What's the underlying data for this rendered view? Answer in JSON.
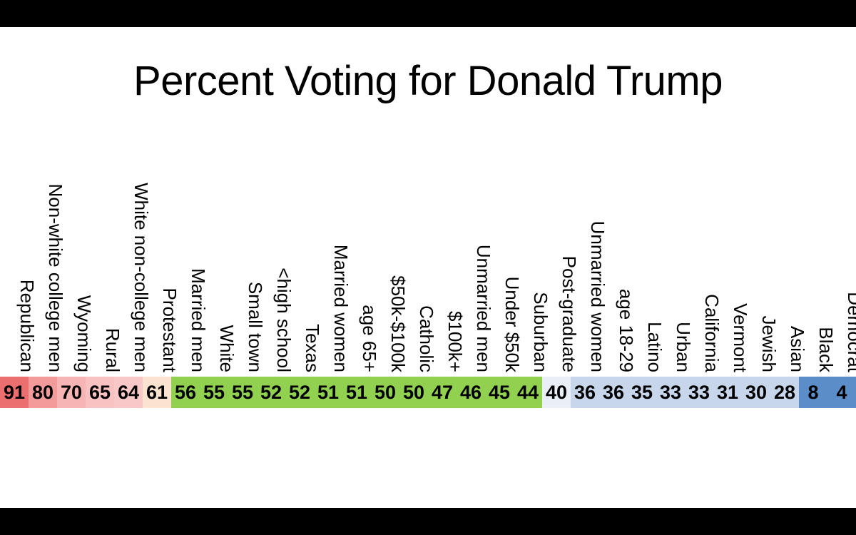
{
  "title": "Percent Voting for Donald Trump",
  "chart_data": {
    "type": "table",
    "title": "Percent Voting for Donald Trump",
    "categories": [
      "Republican",
      "Non-white college men",
      "Wyoming",
      "Rural",
      "White non-college men",
      "Protestant",
      "Married men",
      "White",
      "Small town",
      "<high school",
      "Texas",
      "Married women",
      "age 65+",
      "$50k-$100k",
      "Catholic",
      "$100k+",
      "Unmarried men",
      "Under $50k",
      "Suburban",
      "Post-graduate",
      "Unmarried women",
      "age 18-29",
      "Latino",
      "Urban",
      "California",
      "Vermont",
      "Jewish",
      "Asian",
      "Black",
      "Democrat"
    ],
    "values": [
      91,
      80,
      70,
      65,
      64,
      61,
      56,
      55,
      55,
      52,
      52,
      51,
      51,
      50,
      50,
      47,
      46,
      45,
      44,
      40,
      36,
      36,
      35,
      33,
      33,
      31,
      30,
      28,
      8,
      4
    ],
    "cell_colors": [
      "#ec6f6f",
      "#f39b9b",
      "#f6b4b4",
      "#f8c2c2",
      "#f8c8c8",
      "#fce3d0",
      "#92d050",
      "#92d050",
      "#92d050",
      "#92d050",
      "#92d050",
      "#92d050",
      "#92d050",
      "#92d050",
      "#92d050",
      "#92d050",
      "#92d050",
      "#92d050",
      "#92d050",
      "#e9eef7",
      "#c8d6ec",
      "#c8d6ec",
      "#c8d6ec",
      "#c8d6ec",
      "#c8d6ec",
      "#c8d6ec",
      "#c8d6ec",
      "#c8d6ec",
      "#5b8ec9",
      "#5b8ec9"
    ]
  }
}
